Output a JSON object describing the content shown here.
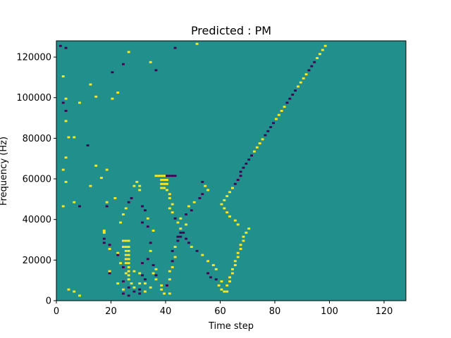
{
  "chart_data": {
    "type": "heatmap",
    "title": "Predicted : PM",
    "xlabel": "Time step",
    "ylabel": "Frequency (Hz)",
    "xlim": [
      0,
      128
    ],
    "ylim": [
      0,
      128000
    ],
    "x_ticks": [
      0,
      20,
      40,
      60,
      80,
      100,
      120
    ],
    "y_ticks": [
      0,
      20000,
      40000,
      60000,
      80000,
      100000,
      120000
    ],
    "x_tick_labels": [
      "0",
      "20",
      "40",
      "60",
      "80",
      "100",
      "120"
    ],
    "y_tick_labels": [
      "0",
      "20000",
      "40000",
      "60000",
      "80000",
      "100000",
      "120000"
    ],
    "grid": false,
    "colormap": "viridis",
    "colors": {
      "background": "#21908d",
      "low": "#440154",
      "high": "#fde725"
    },
    "cells": [
      [
        1,
        125,
        1
      ],
      [
        3,
        124,
        1
      ],
      [
        2,
        110,
        2
      ],
      [
        3,
        99,
        2
      ],
      [
        2,
        97,
        1
      ],
      [
        3,
        93,
        1
      ],
      [
        3,
        88,
        2
      ],
      [
        4,
        80,
        2
      ],
      [
        6,
        80,
        2
      ],
      [
        3,
        70,
        2
      ],
      [
        2,
        64,
        2
      ],
      [
        3,
        58,
        2
      ],
      [
        2,
        46,
        2
      ],
      [
        6,
        48,
        2
      ],
      [
        4,
        5,
        2
      ],
      [
        6,
        4,
        2
      ],
      [
        8,
        2,
        2
      ],
      [
        8,
        46,
        1
      ],
      [
        8,
        97,
        2
      ],
      [
        12,
        106,
        2
      ],
      [
        14,
        100,
        2
      ],
      [
        11,
        76,
        1
      ],
      [
        12,
        56,
        2
      ],
      [
        14,
        66,
        2
      ],
      [
        18,
        64,
        2
      ],
      [
        20,
        99,
        2
      ],
      [
        22,
        102,
        2
      ],
      [
        20,
        112,
        1
      ],
      [
        24,
        116,
        1
      ],
      [
        26,
        122,
        2
      ],
      [
        34,
        117,
        2
      ],
      [
        36,
        113,
        1
      ],
      [
        43,
        124,
        1
      ],
      [
        51,
        126,
        2
      ],
      [
        16,
        60,
        2
      ],
      [
        18,
        46,
        1
      ],
      [
        18,
        48,
        2
      ],
      [
        21,
        50,
        2
      ],
      [
        17,
        34,
        2
      ],
      [
        17,
        33,
        2
      ],
      [
        17,
        30,
        1
      ],
      [
        17,
        28,
        1
      ],
      [
        19,
        27,
        1
      ],
      [
        19,
        25,
        2
      ],
      [
        22,
        23,
        2
      ],
      [
        22,
        22,
        1
      ],
      [
        23,
        18,
        2
      ],
      [
        19,
        14,
        2
      ],
      [
        19,
        13,
        1
      ],
      [
        24,
        16,
        1
      ],
      [
        25,
        13,
        2
      ],
      [
        24,
        9,
        1
      ],
      [
        26,
        10,
        2
      ],
      [
        27,
        8,
        2
      ],
      [
        24,
        5,
        2
      ],
      [
        26,
        6,
        1
      ],
      [
        28,
        4,
        1
      ],
      [
        30,
        3,
        1
      ],
      [
        28,
        6,
        2
      ],
      [
        30,
        5,
        1
      ],
      [
        32,
        4,
        2
      ],
      [
        22,
        8,
        2
      ],
      [
        24,
        3,
        1
      ],
      [
        26,
        2,
        1
      ],
      [
        23,
        38,
        2
      ],
      [
        24,
        42,
        2
      ],
      [
        25,
        45,
        2
      ],
      [
        26,
        48,
        1
      ],
      [
        27,
        50,
        1
      ],
      [
        24,
        29,
        2
      ],
      [
        25,
        29,
        2
      ],
      [
        26,
        29,
        2
      ],
      [
        24,
        26,
        2
      ],
      [
        25,
        26,
        2
      ],
      [
        26,
        26,
        2
      ],
      [
        25,
        24,
        2
      ],
      [
        26,
        24,
        2
      ],
      [
        25,
        22,
        2
      ],
      [
        26,
        22,
        2
      ],
      [
        25,
        20,
        2
      ],
      [
        26,
        20,
        2
      ],
      [
        25,
        18,
        2
      ],
      [
        26,
        18,
        2
      ],
      [
        26,
        16,
        2
      ],
      [
        26,
        14,
        2
      ],
      [
        26,
        12,
        2
      ],
      [
        28,
        14,
        2
      ],
      [
        30,
        13,
        2
      ],
      [
        31,
        12,
        1
      ],
      [
        32,
        10,
        1
      ],
      [
        30,
        8,
        2
      ],
      [
        32,
        8,
        2
      ],
      [
        34,
        6,
        2
      ],
      [
        29,
        58,
        2
      ],
      [
        28,
        56,
        2
      ],
      [
        30,
        56,
        2
      ],
      [
        30,
        54,
        2
      ],
      [
        31,
        46,
        1
      ],
      [
        32,
        44,
        1
      ],
      [
        33,
        40,
        2
      ],
      [
        31,
        38,
        1
      ],
      [
        33,
        36,
        1
      ],
      [
        35,
        34,
        2
      ],
      [
        34,
        28,
        1
      ],
      [
        34,
        24,
        2
      ],
      [
        33,
        20,
        1
      ],
      [
        31,
        18,
        1
      ],
      [
        35,
        17,
        1
      ],
      [
        36,
        15,
        2
      ],
      [
        35,
        13,
        2
      ],
      [
        36,
        12,
        1
      ],
      [
        36,
        10,
        2
      ],
      [
        38,
        7,
        2
      ],
      [
        38,
        5,
        2
      ],
      [
        39,
        3,
        2
      ],
      [
        41,
        3,
        2
      ],
      [
        40,
        7,
        1
      ],
      [
        41,
        10,
        2
      ],
      [
        41,
        14,
        2
      ],
      [
        42,
        16,
        2
      ],
      [
        42,
        19,
        1
      ],
      [
        43,
        21,
        2
      ],
      [
        42,
        24,
        1
      ],
      [
        43,
        26,
        2
      ],
      [
        44,
        29,
        1
      ],
      [
        45,
        31,
        1
      ],
      [
        46,
        33,
        1
      ],
      [
        47,
        37,
        2
      ],
      [
        44,
        38,
        1
      ],
      [
        45,
        40,
        2
      ],
      [
        47,
        42,
        1
      ],
      [
        49,
        44,
        1
      ],
      [
        48,
        46,
        2
      ],
      [
        50,
        48,
        2
      ],
      [
        52,
        50,
        1
      ],
      [
        53,
        52,
        1
      ],
      [
        55,
        54,
        2
      ],
      [
        54,
        56,
        2
      ],
      [
        53,
        58,
        1
      ],
      [
        36,
        61,
        2
      ],
      [
        37,
        61,
        2
      ],
      [
        38,
        61,
        2
      ],
      [
        39,
        61,
        2
      ],
      [
        40,
        61,
        1
      ],
      [
        41,
        61,
        1
      ],
      [
        42,
        61,
        1
      ],
      [
        43,
        61,
        1
      ],
      [
        38,
        59,
        2
      ],
      [
        39,
        59,
        2
      ],
      [
        40,
        59,
        2
      ],
      [
        38,
        57,
        2
      ],
      [
        39,
        57,
        2
      ],
      [
        40,
        57,
        2
      ],
      [
        38,
        55,
        2
      ],
      [
        39,
        55,
        2
      ],
      [
        40,
        54,
        2
      ],
      [
        41,
        52,
        2
      ],
      [
        41,
        50,
        2
      ],
      [
        42,
        47,
        2
      ],
      [
        41,
        45,
        2
      ],
      [
        42,
        43,
        2
      ],
      [
        43,
        40,
        1
      ],
      [
        44,
        38,
        2
      ],
      [
        45,
        35,
        2
      ],
      [
        45,
        33,
        1
      ],
      [
        44,
        31,
        1
      ],
      [
        47,
        30,
        1
      ],
      [
        48,
        28,
        1
      ],
      [
        49,
        26,
        2
      ],
      [
        51,
        24,
        1
      ],
      [
        53,
        22,
        2
      ],
      [
        55,
        19,
        2
      ],
      [
        57,
        17,
        2
      ],
      [
        58,
        15,
        2
      ],
      [
        55,
        13,
        1
      ],
      [
        56,
        11,
        1
      ],
      [
        58,
        10,
        1
      ],
      [
        60,
        9,
        2
      ],
      [
        59,
        7,
        2
      ],
      [
        60,
        5,
        2
      ],
      [
        61,
        4,
        2
      ],
      [
        62,
        4,
        2
      ],
      [
        62,
        7,
        2
      ],
      [
        63,
        9,
        2
      ],
      [
        63,
        11,
        2
      ],
      [
        64,
        13,
        2
      ],
      [
        64,
        15,
        2
      ],
      [
        65,
        17,
        2
      ],
      [
        65,
        19,
        2
      ],
      [
        66,
        21,
        2
      ],
      [
        66,
        23,
        2
      ],
      [
        67,
        25,
        2
      ],
      [
        67,
        27,
        2
      ],
      [
        68,
        29,
        2
      ],
      [
        68,
        31,
        2
      ],
      [
        69,
        33,
        2
      ],
      [
        70,
        35,
        2
      ],
      [
        66,
        37,
        2
      ],
      [
        65,
        39,
        2
      ],
      [
        63,
        41,
        2
      ],
      [
        62,
        43,
        2
      ],
      [
        61,
        45,
        2
      ],
      [
        60,
        47,
        2
      ],
      [
        61,
        49,
        2
      ],
      [
        62,
        51,
        2
      ],
      [
        63,
        53,
        2
      ],
      [
        64,
        55,
        2
      ],
      [
        65,
        57,
        1
      ],
      [
        66,
        59,
        1
      ],
      [
        67,
        61,
        1
      ],
      [
        67,
        63,
        1
      ],
      [
        68,
        65,
        1
      ],
      [
        69,
        67,
        1
      ],
      [
        70,
        69,
        1
      ],
      [
        71,
        71,
        1
      ],
      [
        72,
        73,
        2
      ],
      [
        73,
        75,
        2
      ],
      [
        74,
        77,
        2
      ],
      [
        75,
        79,
        2
      ],
      [
        76,
        81,
        1
      ],
      [
        77,
        83,
        1
      ],
      [
        78,
        85,
        1
      ],
      [
        79,
        87,
        1
      ],
      [
        80,
        89,
        2
      ],
      [
        81,
        91,
        2
      ],
      [
        82,
        93,
        2
      ],
      [
        83,
        95,
        2
      ],
      [
        84,
        97,
        1
      ],
      [
        85,
        99,
        1
      ],
      [
        86,
        101,
        1
      ],
      [
        87,
        103,
        1
      ],
      [
        88,
        105,
        2
      ],
      [
        89,
        107,
        2
      ],
      [
        90,
        109,
        2
      ],
      [
        91,
        111,
        2
      ],
      [
        92,
        113,
        1
      ],
      [
        93,
        115,
        1
      ],
      [
        94,
        117,
        1
      ],
      [
        95,
        119,
        2
      ],
      [
        96,
        121,
        2
      ],
      [
        97,
        123,
        2
      ],
      [
        98,
        125,
        2
      ]
    ],
    "cells_note_removed": true
  }
}
